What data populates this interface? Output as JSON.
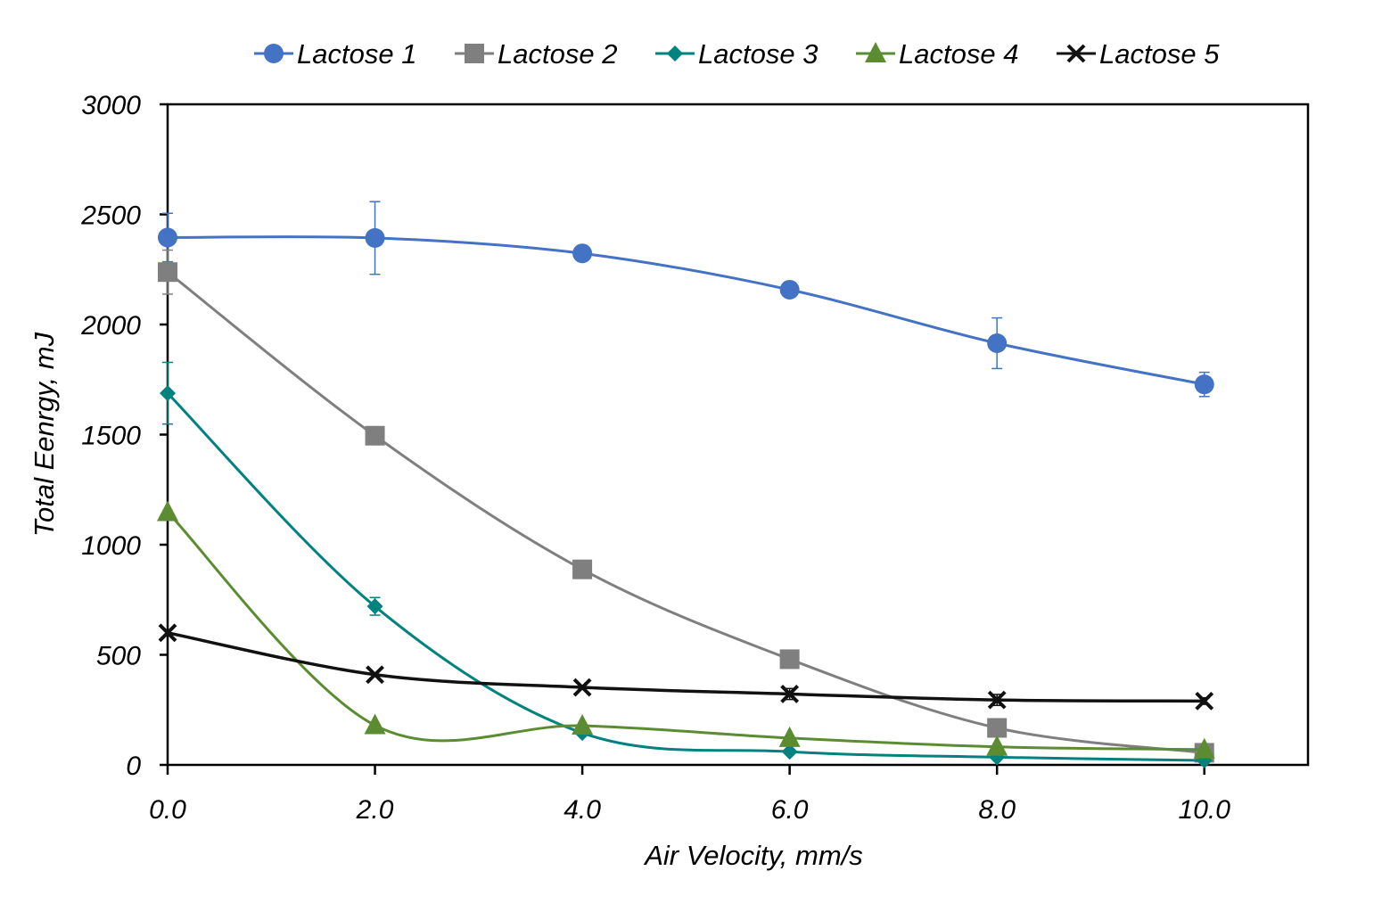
{
  "chart_data": {
    "type": "line",
    "xlabel": "Air Velocity, mm/s",
    "ylabel": "Total Eenrgy, mJ",
    "xlim": [
      0,
      11
    ],
    "ylim": [
      0,
      3000
    ],
    "x_ticks": [
      0,
      2,
      4,
      6,
      8,
      10
    ],
    "x_tick_labels": [
      "0.0",
      "2.0",
      "4.0",
      "6.0",
      "8.0",
      "10.0"
    ],
    "y_ticks": [
      0,
      500,
      1000,
      1500,
      2000,
      2500,
      3000
    ],
    "y_tick_labels": [
      "0",
      "500",
      "1000",
      "1500",
      "2000",
      "2500",
      "3000"
    ],
    "legend_position": "top",
    "grid": false,
    "x": [
      0,
      2,
      4,
      6,
      8,
      10
    ],
    "series": [
      {
        "name": "Lactose 1",
        "color": "#4472C4",
        "marker": "circle",
        "values": [
          2395,
          2393,
          2323,
          2158,
          1915,
          1728
        ],
        "error": [
          110,
          165,
          0,
          0,
          115,
          55
        ]
      },
      {
        "name": "Lactose 2",
        "color": "#7F7F7F",
        "marker": "square",
        "values": [
          2238,
          1495,
          888,
          480,
          168,
          55
        ],
        "error": [
          100,
          0,
          0,
          0,
          0,
          0
        ]
      },
      {
        "name": "Lactose 3",
        "color": "#00827F",
        "marker": "diamond",
        "values": [
          1688,
          720,
          145,
          60,
          35,
          20
        ],
        "error": [
          140,
          40,
          0,
          0,
          0,
          0
        ]
      },
      {
        "name": "Lactose 4",
        "color": "#5B8C32",
        "marker": "triangle",
        "values": [
          1148,
          180,
          178,
          122,
          82,
          70
        ],
        "error": [
          0,
          0,
          0,
          0,
          0,
          0
        ]
      },
      {
        "name": "Lactose 5",
        "color": "#111111",
        "marker": "x",
        "values": [
          600,
          410,
          352,
          322,
          295,
          290
        ],
        "error": [
          0,
          0,
          0,
          25,
          25,
          15
        ]
      }
    ]
  }
}
